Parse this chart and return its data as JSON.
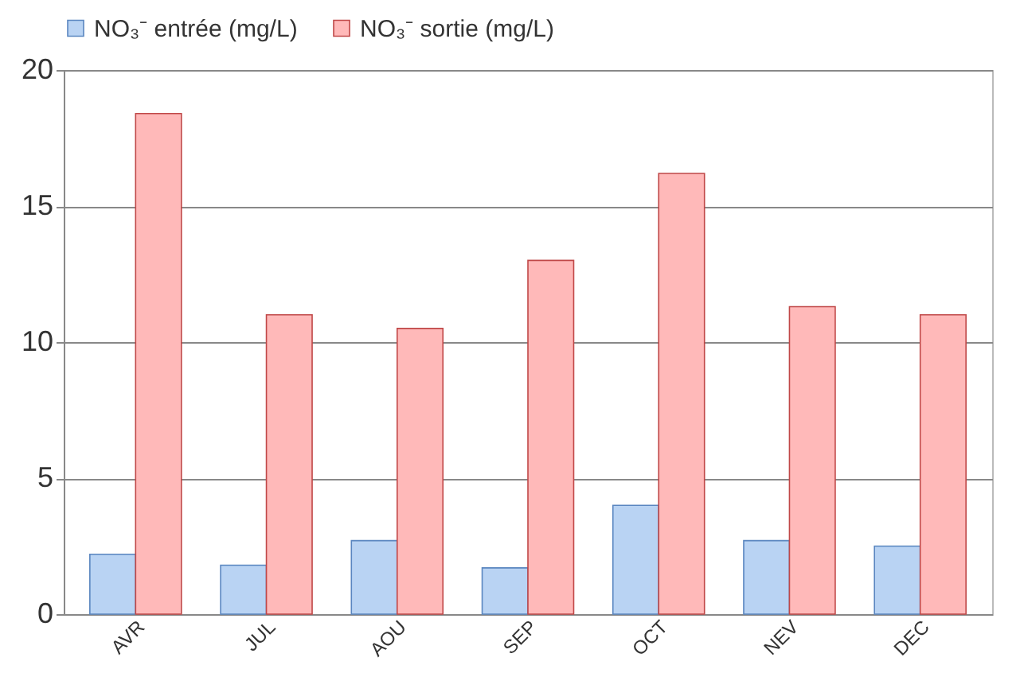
{
  "chart_data": {
    "type": "bar",
    "categories": [
      "AVR",
      "JUL",
      "AOU",
      "SEP",
      "OCT",
      "NEV",
      "DEC"
    ],
    "series": [
      {
        "name": "NO₃⁻ entrée (mg/L)",
        "color": "#b9d3f3",
        "values": [
          2.2,
          1.8,
          2.7,
          1.7,
          4.0,
          2.7,
          2.5
        ]
      },
      {
        "name": "NO₃⁻ sortie (mg/L)",
        "color": "#ffb9b9",
        "values": [
          18.4,
          11.0,
          10.5,
          13.0,
          16.2,
          11.3,
          11.0
        ]
      }
    ],
    "ylim": [
      0,
      20
    ],
    "yticks": [
      0,
      5,
      10,
      15,
      20
    ],
    "grid": "y",
    "legend": "top"
  }
}
